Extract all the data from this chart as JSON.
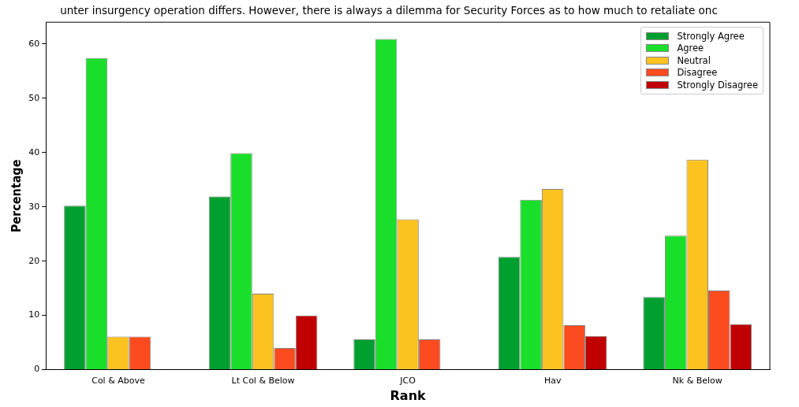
{
  "chart_data": {
    "type": "bar",
    "title": "unter insurgency operation differs. However, there is always a dilemma for Security Forces as to how much to retaliate onc",
    "xlabel": "Rank",
    "ylabel": "Percentage",
    "categories": [
      "Col & Above",
      "Lt Col & Below",
      "JCO",
      "Hav",
      "Nk & Below"
    ],
    "series": [
      {
        "name": "Strongly Agree",
        "color": "#00a030",
        "values": [
          30.2,
          31.9,
          5.6,
          20.8,
          13.4
        ]
      },
      {
        "name": "Agree",
        "color": "#1adf2a",
        "values": [
          57.4,
          39.9,
          60.9,
          31.3,
          24.7
        ]
      },
      {
        "name": "Neutral",
        "color": "#fbc220",
        "values": [
          6.1,
          14.0,
          27.7,
          33.3,
          38.7
        ]
      },
      {
        "name": "Disagree",
        "color": "#fc4b1f",
        "values": [
          6.1,
          4.0,
          5.6,
          8.2,
          14.6
        ]
      },
      {
        "name": "Strongly Disagree",
        "color": "#c00000",
        "values": [
          null,
          10.0,
          null,
          6.2,
          8.4
        ]
      }
    ],
    "ylim": [
      0,
      64
    ],
    "yticks": [
      0,
      10,
      20,
      30,
      40,
      50,
      60
    ],
    "grid": false,
    "legend": "top right"
  }
}
